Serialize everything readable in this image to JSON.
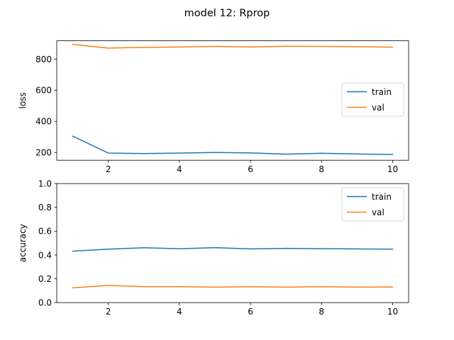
{
  "figure": {
    "title": "model 12: Rprop"
  },
  "colors": {
    "train": "#1f77b4",
    "val": "#ff7f0e"
  },
  "chart_data": [
    {
      "type": "line",
      "ylabel": "loss",
      "xlabel": "",
      "x": [
        1,
        2,
        3,
        4,
        5,
        6,
        7,
        8,
        9,
        10
      ],
      "xlim": [
        0.55,
        10.45
      ],
      "ylim": [
        150,
        918
      ],
      "xticks": [
        2,
        4,
        6,
        8,
        10
      ],
      "yticks": [
        200,
        400,
        600,
        800
      ],
      "legend": "center-right",
      "series": [
        {
          "name": "train",
          "values": [
            305,
            196,
            193,
            196,
            200,
            197,
            189,
            195,
            190,
            187
          ]
        },
        {
          "name": "val",
          "values": [
            895,
            871,
            876,
            878,
            882,
            878,
            883,
            882,
            880,
            877
          ]
        }
      ]
    },
    {
      "type": "line",
      "ylabel": "accuracy",
      "xlabel": "",
      "x": [
        1,
        2,
        3,
        4,
        5,
        6,
        7,
        8,
        9,
        10
      ],
      "xlim": [
        0.55,
        10.45
      ],
      "ylim": [
        0,
        1
      ],
      "xticks": [
        2,
        4,
        6,
        8,
        10
      ],
      "yticks": [
        0.0,
        0.2,
        0.4,
        0.6,
        0.8,
        1.0
      ],
      "ytick_labels": [
        "0.0",
        "0.2",
        "0.4",
        "0.6",
        "0.8",
        "1.0"
      ],
      "legend": "top-right",
      "series": [
        {
          "name": "train",
          "values": [
            0.432,
            0.449,
            0.461,
            0.453,
            0.462,
            0.451,
            0.456,
            0.453,
            0.451,
            0.449
          ]
        },
        {
          "name": "val",
          "values": [
            0.124,
            0.145,
            0.134,
            0.134,
            0.13,
            0.134,
            0.13,
            0.134,
            0.13,
            0.131
          ]
        }
      ]
    }
  ]
}
